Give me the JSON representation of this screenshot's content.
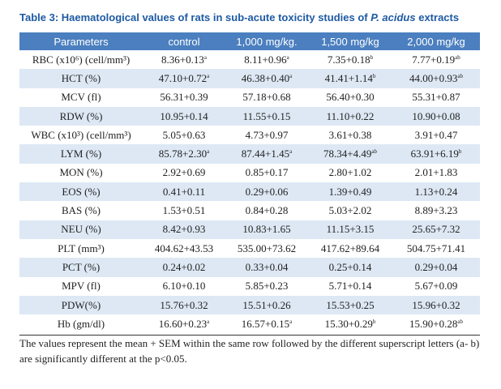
{
  "caption": {
    "lead": "Table 3: Haematological values of rats in sub-acute toxicity studies of ",
    "species": "P. acidus",
    "tail": " extracts"
  },
  "columns": [
    "Parameters",
    "control",
    "1,000 mg/kg.",
    "1,500 mg/kg",
    "2,000 mg/kg"
  ],
  "rows": [
    {
      "parameter": "RBC (x10⁶) (cell/mm³)",
      "cells": [
        {
          "v": "8.36+0.13",
          "s": "a"
        },
        {
          "v": "8.11+0.96",
          "s": "a"
        },
        {
          "v": "7.35+0.18",
          "s": "b"
        },
        {
          "v": "7.77+0.19",
          "s": "ab"
        }
      ]
    },
    {
      "parameter": "HCT (%)",
      "cells": [
        {
          "v": "47.10+0.72",
          "s": "a"
        },
        {
          "v": "46.38+0.40",
          "s": "a"
        },
        {
          "v": "41.41+1.14",
          "s": "b"
        },
        {
          "v": "44.00+0.93",
          "s": "ab"
        }
      ]
    },
    {
      "parameter": "MCV (fl)",
      "cells": [
        {
          "v": "56.31+0.39",
          "s": ""
        },
        {
          "v": "57.18+0.68",
          "s": ""
        },
        {
          "v": "56.40+0.30",
          "s": ""
        },
        {
          "v": "55.31+0.87",
          "s": ""
        }
      ]
    },
    {
      "parameter": "RDW (%)",
      "cells": [
        {
          "v": "10.95+0.14",
          "s": ""
        },
        {
          "v": "11.55+0.15",
          "s": ""
        },
        {
          "v": "11.10+0.22",
          "s": ""
        },
        {
          "v": "10.90+0.08",
          "s": ""
        }
      ]
    },
    {
      "parameter": "WBC (x10³) (cell/mm³)",
      "cells": [
        {
          "v": "5.05+0.63",
          "s": ""
        },
        {
          "v": "4.73+0.97",
          "s": ""
        },
        {
          "v": "3.61+0.38",
          "s": ""
        },
        {
          "v": "3.91+0.47",
          "s": ""
        }
      ]
    },
    {
      "parameter": "LYM (%)",
      "cells": [
        {
          "v": "85.78+2.30",
          "s": "a"
        },
        {
          "v": "87.44+1.45",
          "s": "a"
        },
        {
          "v": "78.34+4.49",
          "s": "ab"
        },
        {
          "v": "63.91+6.19",
          "s": "b"
        }
      ]
    },
    {
      "parameter": "MON (%)",
      "cells": [
        {
          "v": "2.92+0.69",
          "s": ""
        },
        {
          "v": "0.85+0.17",
          "s": ""
        },
        {
          "v": "2.80+1.02",
          "s": ""
        },
        {
          "v": "2.01+1.83",
          "s": ""
        }
      ]
    },
    {
      "parameter": "EOS (%)",
      "cells": [
        {
          "v": "0.41+0.11",
          "s": ""
        },
        {
          "v": "0.29+0.06",
          "s": ""
        },
        {
          "v": "1.39+0.49",
          "s": ""
        },
        {
          "v": "1.13+0.24",
          "s": ""
        }
      ]
    },
    {
      "parameter": "BAS (%)",
      "cells": [
        {
          "v": "1.53+0.51",
          "s": ""
        },
        {
          "v": "0.84+0.28",
          "s": ""
        },
        {
          "v": "5.03+2.02",
          "s": ""
        },
        {
          "v": "8.89+3.23",
          "s": ""
        }
      ]
    },
    {
      "parameter": "NEU (%)",
      "cells": [
        {
          "v": "8.42+0.93",
          "s": ""
        },
        {
          "v": "10.83+1.65",
          "s": ""
        },
        {
          "v": "11.15+3.15",
          "s": ""
        },
        {
          "v": "25.65+7.32",
          "s": ""
        }
      ]
    },
    {
      "parameter": "PLT (mm³)",
      "cells": [
        {
          "v": "404.62+43.53",
          "s": ""
        },
        {
          "v": "535.00+73.62",
          "s": ""
        },
        {
          "v": "417.62+89.64",
          "s": ""
        },
        {
          "v": "504.75+71.41",
          "s": ""
        }
      ]
    },
    {
      "parameter": "PCT (%)",
      "cells": [
        {
          "v": "0.24+0.02",
          "s": ""
        },
        {
          "v": "0.33+0.04",
          "s": ""
        },
        {
          "v": "0.25+0.14",
          "s": ""
        },
        {
          "v": "0.29+0.04",
          "s": ""
        }
      ]
    },
    {
      "parameter": "MPV (fl)",
      "cells": [
        {
          "v": "6.10+0.10",
          "s": ""
        },
        {
          "v": "5.85+0.23",
          "s": ""
        },
        {
          "v": "5.71+0.14",
          "s": ""
        },
        {
          "v": "5.67+0.09",
          "s": ""
        }
      ]
    },
    {
      "parameter": "PDW(%)",
      "cells": [
        {
          "v": "15.76+0.32",
          "s": ""
        },
        {
          "v": "15.51+0.26",
          "s": ""
        },
        {
          "v": "15.53+0.25",
          "s": ""
        },
        {
          "v": "15.96+0.32",
          "s": ""
        }
      ]
    },
    {
      "parameter": "Hb (gm/dl)",
      "cells": [
        {
          "v": "16.60+0.23",
          "s": "a"
        },
        {
          "v": "16.57+0.15",
          "s": "a"
        },
        {
          "v": "15.30+0.29",
          "s": "b"
        },
        {
          "v": "15.90+0.28",
          "s": "ab"
        }
      ]
    }
  ],
  "footnote": "The values represent the mean + SEM within the same row followed by the different superscript letters (a- b) are significantly different at the p<0.05.",
  "colors": {
    "header_bg": "#4b7fbf",
    "stripe_bg": "#dde8f4",
    "caption": "#1e5aa3"
  }
}
